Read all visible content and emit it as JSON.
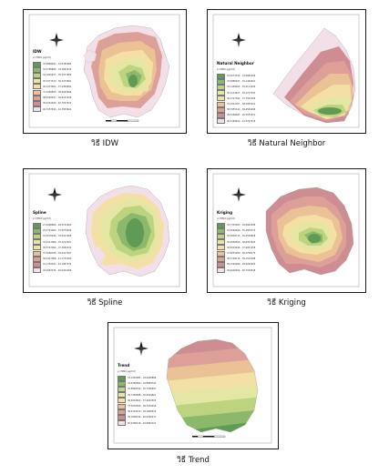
{
  "panels": [
    {
      "id": "idw",
      "title": "IDW",
      "caption": "วิธี IDW",
      "unit": "ค่า PM10 (µg/m3)",
      "legend": [
        "31.9889691 - 33.0785684",
        "33.0785685 - 34.1681676",
        "34.1681677 - 35.2577669",
        "35.2577670 - 36.3473661",
        "36.3473662 - 37.4369654",
        "37.4369655 - 38.5265646",
        "38.5265647 - 39.6161639",
        "39.6161640 - 40.7057631",
        "40.7057632 - 41.7953624"
      ],
      "colors": [
        "#5f9b54",
        "#8bb86a",
        "#bcd37f",
        "#e4e6a3",
        "#f2e0a4",
        "#eac296",
        "#dca098",
        "#cd8d93",
        "#f2dfe7"
      ]
    },
    {
      "id": "natural-neighbor",
      "title": "Natural Neighbor",
      "caption": "วิธี Natural Neighbor",
      "unit": "ค่า PM10 (µg/m3)",
      "legend": [
        "32.0271531 - 33.0885496",
        "33.0885497 - 34.1499461",
        "34.1499462 - 35.2113426",
        "35.2113427 - 36.2727391",
        "36.2727392 - 37.3341356",
        "37.3341357 - 38.3955321",
        "38.3955322 - 39.4569286",
        "39.4569287 - 40.5183251",
        "40.5183252 - 41.5797216"
      ],
      "colors": [
        "#5f9b54",
        "#8bb86a",
        "#bcd37f",
        "#e4e6a3",
        "#f2e0a4",
        "#eac296",
        "#dca098",
        "#cd8d93",
        "#f2dfe7"
      ]
    },
    {
      "id": "spline",
      "title": "Spline",
      "caption": "วิธี Spline",
      "unit": "ค่า PM10 (µg/m3)",
      "legend": [
        "27.6406869 - 29.5741902",
        "29.5741903 - 31.5076935",
        "31.5076936 - 33.4411968",
        "33.4411969 - 35.3747001",
        "35.3747002 - 37.3082034",
        "37.3082035 - 39.2417067",
        "39.2417068 - 41.1752100",
        "41.1752101 - 43.1087133",
        "43.1087134 - 45.0422166"
      ],
      "colors": [
        "#5f9b54",
        "#8bb86a",
        "#bcd37f",
        "#e4e6a3",
        "#f2e0a4",
        "#eac296",
        "#dca098",
        "#cd8d93",
        "#f2dfe7"
      ]
    },
    {
      "id": "kriging",
      "title": "Kriging",
      "caption": "วิธี Kriging",
      "unit": "ค่า PM10 (µg/m3)",
      "legend": [
        "33.7315483 - 34.5062598",
        "34.5062599 - 35.2809713",
        "35.2809714 - 36.0556828",
        "36.0556829 - 36.8303943",
        "36.8303944 - 37.6051058",
        "37.6051059 - 38.3798173",
        "38.3798174 - 39.1545288",
        "39.1545289 - 39.9292403",
        "39.9292404 - 40.7039518"
      ],
      "colors": [
        "#5f9b54",
        "#8bb86a",
        "#bcd37f",
        "#e4e6a3",
        "#f2e0a4",
        "#eac296",
        "#dca098",
        "#cd8d93",
        "#f2dfe7"
      ]
    },
    {
      "id": "trend",
      "title": "Trend",
      "caption": "วิธี Trend",
      "unit": "ค่า PM10 (µg/m3)",
      "legend": [
        "33.1692985 - 34.0280889",
        "34.0280890 - 34.8868793",
        "34.8868794 - 35.7456697",
        "35.7456698 - 36.6044601",
        "36.6044602 - 37.4632505",
        "37.4632506 - 38.3220409",
        "38.3220410 - 39.1808313",
        "39.1808314 - 40.0396217",
        "40.0396218 - 40.8984121"
      ],
      "colors": [
        "#5f9b54",
        "#8bb86a",
        "#bcd37f",
        "#e4e6a3",
        "#f2e0a4",
        "#eac296",
        "#dca098",
        "#cd8d93",
        "#f2dfe7"
      ]
    }
  ],
  "north_label": "N",
  "scale_label": "0   1.5   3        6 Kilometers"
}
